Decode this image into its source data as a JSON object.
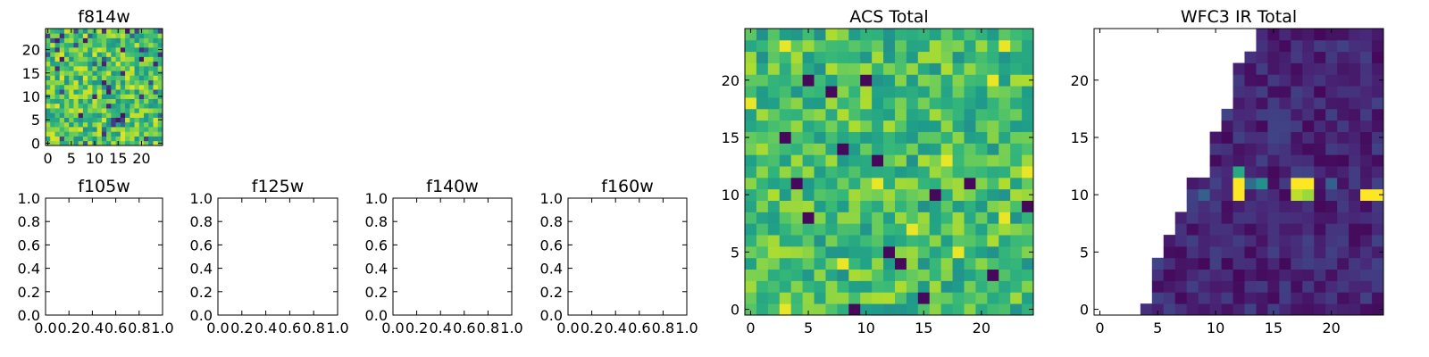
{
  "chart_data": [
    {
      "id": "f814w",
      "type": "heatmap",
      "title": "f814w",
      "colormap": "viridis",
      "grid_size": 25,
      "xlim": [
        -0.5,
        24.5
      ],
      "ylim": [
        -0.5,
        24.5
      ],
      "xticks": [
        0,
        5,
        10,
        15,
        20
      ],
      "yticks": [
        0,
        5,
        10,
        15,
        20
      ],
      "xticklabels": [
        "0",
        "5",
        "10",
        "15",
        "20"
      ],
      "yticklabels": [
        "0",
        "5",
        "10",
        "15",
        "20"
      ],
      "values_note": "25x25 noisy pixel values, mostly 0.55-0.95 on the colour scale with scattered dark pixels"
    },
    {
      "id": "f105w",
      "type": "empty",
      "title": "f105w",
      "xlim": [
        0,
        1
      ],
      "ylim": [
        0,
        1
      ],
      "xticklabels": [
        "0.0",
        "0.2",
        "0.4",
        "0.6",
        "0.8",
        "1.0"
      ],
      "yticklabels": [
        "0.0",
        "0.2",
        "0.4",
        "0.6",
        "0.8",
        "1.0"
      ]
    },
    {
      "id": "f125w",
      "type": "empty",
      "title": "f125w",
      "xlim": [
        0,
        1
      ],
      "ylim": [
        0,
        1
      ],
      "xticklabels": [
        "0.0",
        "0.2",
        "0.4",
        "0.6",
        "0.8",
        "1.0"
      ],
      "yticklabels": [
        "0.0",
        "0.2",
        "0.4",
        "0.6",
        "0.8",
        "1.0"
      ]
    },
    {
      "id": "f140w",
      "type": "empty",
      "title": "f140w",
      "xlim": [
        0,
        1
      ],
      "ylim": [
        0,
        1
      ],
      "xticklabels": [
        "0.0",
        "0.2",
        "0.4",
        "0.6",
        "0.8",
        "1.0"
      ],
      "yticklabels": [
        "0.0",
        "0.2",
        "0.4",
        "0.6",
        "0.8",
        "1.0"
      ]
    },
    {
      "id": "f160w",
      "type": "empty",
      "title": "f160w",
      "xlim": [
        0,
        1
      ],
      "ylim": [
        0,
        1
      ],
      "xticklabels": [
        "0.0",
        "0.2",
        "0.4",
        "0.6",
        "0.8",
        "1.0"
      ],
      "yticklabels": [
        "0.0",
        "0.2",
        "0.4",
        "0.6",
        "0.8",
        "1.0"
      ]
    },
    {
      "id": "acs_total",
      "type": "heatmap",
      "title": "ACS Total",
      "colormap": "viridis",
      "grid_size": 25,
      "xlim": [
        -0.5,
        24.5
      ],
      "ylim": [
        -0.5,
        24.5
      ],
      "xticks": [
        0,
        5,
        10,
        15,
        20
      ],
      "yticks": [
        0,
        5,
        10,
        15,
        20
      ],
      "xticklabels": [
        "0",
        "5",
        "10",
        "15",
        "20"
      ],
      "yticklabels": [
        "0",
        "5",
        "10",
        "15",
        "20"
      ],
      "dark_pixels": [
        [
          5,
          20
        ],
        [
          10,
          20
        ],
        [
          7,
          19
        ],
        [
          3,
          15
        ],
        [
          4,
          11
        ],
        [
          8,
          14
        ],
        [
          11,
          13
        ],
        [
          16,
          10
        ],
        [
          19,
          11
        ],
        [
          24,
          9
        ],
        [
          12,
          5
        ],
        [
          9,
          0
        ],
        [
          15,
          1
        ],
        [
          13,
          4
        ],
        [
          5,
          8
        ],
        [
          21,
          3
        ]
      ],
      "bright_pixels": [
        [
          3,
          23
        ],
        [
          22,
          23
        ],
        [
          0,
          18
        ],
        [
          21,
          20
        ],
        [
          11,
          11
        ],
        [
          17,
          13
        ],
        [
          22,
          8
        ],
        [
          24,
          12
        ],
        [
          3,
          0
        ],
        [
          18,
          5
        ],
        [
          14,
          7
        ],
        [
          8,
          4
        ]
      ],
      "values_note": "25x25 noisy pixel values, mostly 0.5-0.9 on the colour scale"
    },
    {
      "id": "wfc3_ir_total",
      "type": "heatmap",
      "title": "WFC3 IR Total",
      "colormap": "viridis",
      "grid_size": 25,
      "xlim": [
        -0.5,
        24.5
      ],
      "ylim": [
        -0.5,
        24.5
      ],
      "xticks": [
        0,
        5,
        10,
        15,
        20
      ],
      "yticks": [
        0,
        5,
        10,
        15,
        20
      ],
      "xticklabels": [
        "0",
        "5",
        "10",
        "15",
        "20"
      ],
      "yticklabels": [
        "0",
        "5",
        "10",
        "15",
        "20"
      ],
      "coverage_left_edge": [
        [
          0,
          4
        ],
        [
          1,
          5
        ],
        [
          2,
          5
        ],
        [
          3,
          5
        ],
        [
          4,
          5
        ],
        [
          5,
          6
        ],
        [
          6,
          6
        ],
        [
          7,
          7
        ],
        [
          8,
          7
        ],
        [
          9,
          8
        ],
        [
          10,
          8
        ],
        [
          11,
          8
        ],
        [
          12,
          10
        ],
        [
          13,
          10
        ],
        [
          14,
          10
        ],
        [
          15,
          10
        ],
        [
          16,
          11
        ],
        [
          17,
          11
        ],
        [
          18,
          12
        ],
        [
          19,
          12
        ],
        [
          20,
          12
        ],
        [
          21,
          12
        ],
        [
          22,
          13
        ],
        [
          23,
          14
        ],
        [
          24,
          14
        ]
      ],
      "bright_pixels": [
        [
          12,
          10,
          1.0
        ],
        [
          12,
          11,
          1.0
        ],
        [
          12,
          12,
          0.6
        ],
        [
          17,
          11,
          1.0
        ],
        [
          18,
          11,
          1.0
        ],
        [
          17,
          10,
          0.9
        ],
        [
          18,
          10,
          0.85
        ],
        [
          23,
          10,
          1.0
        ],
        [
          24,
          10,
          1.0
        ],
        [
          14,
          11,
          0.5
        ],
        [
          13,
          11,
          0.35
        ],
        [
          9,
          10,
          0.3
        ],
        [
          20,
          11,
          0.3
        ]
      ],
      "values_note": "pixels left of the coverage edge are blank (white); covered pixels are mostly low values (0.0-0.2) with a few bright sources near row 10-12"
    }
  ]
}
